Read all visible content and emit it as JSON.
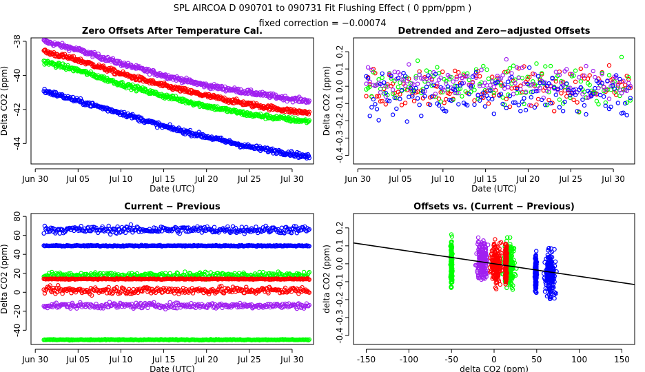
{
  "header": {
    "title": "SPL   AIRCOA D   090701 to 090731   Fit Flushing Effect ( 0 ppm/ppm )",
    "subtitle": "fixed correction = −0.00074"
  },
  "colors": {
    "blue": "#0000ff",
    "red": "#ff0000",
    "green": "#00ff00",
    "purple": "#a020f0",
    "line": "#000000"
  },
  "chart_data": [
    {
      "id": "zero-offsets",
      "type": "scatter",
      "title": "Zero Offsets After Temperature Cal.",
      "xlabel": "Date (UTC)",
      "ylabel": "Delta CO2 (ppm)",
      "xlim": [
        -0.5,
        32.5
      ],
      "ylim": [
        -45.2,
        -37.8
      ],
      "xticks": [
        {
          "v": 0,
          "label": "Jun 30"
        },
        {
          "v": 5,
          "label": "Jul 05"
        },
        {
          "v": 10,
          "label": "Jul 10"
        },
        {
          "v": 15,
          "label": "Jul 15"
        },
        {
          "v": 20,
          "label": "Jul 20"
        },
        {
          "v": 25,
          "label": "Jul 25"
        },
        {
          "v": 30,
          "label": "Jul 30"
        }
      ],
      "yticks": [
        {
          "v": -38,
          "label": "-38"
        },
        {
          "v": -40,
          "label": "-40"
        },
        {
          "v": -42,
          "label": "-42"
        },
        {
          "v": -44,
          "label": "-44"
        }
      ],
      "series": [
        {
          "name": "purple",
          "color": "purple",
          "x": [
            1,
            5,
            10,
            15,
            20,
            25,
            30,
            32
          ],
          "y": [
            -38,
            -38.5,
            -39.3,
            -40,
            -40.6,
            -41,
            -41.4,
            -41.5
          ]
        },
        {
          "name": "red",
          "color": "red",
          "x": [
            1,
            5,
            10,
            15,
            20,
            25,
            30,
            32
          ],
          "y": [
            -38.6,
            -39.1,
            -39.9,
            -40.6,
            -41.2,
            -41.7,
            -42.1,
            -42.2
          ]
        },
        {
          "name": "green",
          "color": "green",
          "x": [
            1,
            5,
            10,
            15,
            20,
            25,
            30,
            32
          ],
          "y": [
            -39.2,
            -39.7,
            -40.5,
            -41.2,
            -41.8,
            -42.3,
            -42.6,
            -42.7
          ]
        },
        {
          "name": "blue",
          "color": "blue",
          "x": [
            1,
            5,
            10,
            15,
            20,
            25,
            30,
            32
          ],
          "y": [
            -40.9,
            -41.5,
            -42.2,
            -43,
            -43.6,
            -44.2,
            -44.6,
            -44.8
          ]
        }
      ]
    },
    {
      "id": "detrended",
      "type": "scatter",
      "title": "Detrended and Zero−adjusted Offsets",
      "xlabel": "Date (UTC)",
      "ylabel": "Delta CO2 (ppm)",
      "xlim": [
        -0.5,
        32.5
      ],
      "ylim": [
        -0.45,
        0.28
      ],
      "xticks": [
        {
          "v": 0,
          "label": "Jun 30"
        },
        {
          "v": 5,
          "label": "Jul 05"
        },
        {
          "v": 10,
          "label": "Jul 10"
        },
        {
          "v": 15,
          "label": "Jul 15"
        },
        {
          "v": 20,
          "label": "Jul 20"
        },
        {
          "v": 25,
          "label": "Jul 25"
        },
        {
          "v": 30,
          "label": "Jul 30"
        }
      ],
      "yticks": [
        {
          "v": 0.2,
          "label": "0.2"
        },
        {
          "v": 0.1,
          "label": "0.1"
        },
        {
          "v": 0,
          "label": "0.0"
        },
        {
          "v": -0.1,
          "label": "-0.1"
        },
        {
          "v": -0.2,
          "label": "-0.2"
        },
        {
          "v": -0.3,
          "label": "-0.3"
        },
        {
          "v": -0.4,
          "label": "-0.4"
        }
      ],
      "series": [
        {
          "name": "red",
          "color": "red",
          "xrange": [
            1,
            32
          ],
          "center": 0.0,
          "spread": 0.1
        },
        {
          "name": "green",
          "color": "green",
          "xrange": [
            1,
            32
          ],
          "center": 0.0,
          "spread": 0.1
        },
        {
          "name": "purple",
          "color": "purple",
          "xrange": [
            1,
            32
          ],
          "center": 0.02,
          "spread": 0.08
        },
        {
          "name": "blue",
          "color": "blue",
          "xrange": [
            1,
            32
          ],
          "center": -0.05,
          "spread": 0.12
        }
      ]
    },
    {
      "id": "current-previous",
      "type": "scatter",
      "title": "Current − Previous",
      "xlabel": "Date (UTC)",
      "ylabel": "Delta CO2 (ppm)",
      "xlim": [
        -0.5,
        32.5
      ],
      "ylim": [
        -55,
        83
      ],
      "xticks": [
        {
          "v": 0,
          "label": "Jun 30"
        },
        {
          "v": 5,
          "label": "Jul 05"
        },
        {
          "v": 10,
          "label": "Jul 10"
        },
        {
          "v": 15,
          "label": "Jul 15"
        },
        {
          "v": 20,
          "label": "Jul 20"
        },
        {
          "v": 25,
          "label": "Jul 25"
        },
        {
          "v": 30,
          "label": "Jul 30"
        }
      ],
      "yticks": [
        {
          "v": 80,
          "label": "80"
        },
        {
          "v": 60,
          "label": "60"
        },
        {
          "v": 40,
          "label": "40"
        },
        {
          "v": 20,
          "label": "20"
        },
        {
          "v": 0,
          "label": "0"
        },
        {
          "v": -20,
          "label": "-20"
        },
        {
          "v": -40,
          "label": "-40"
        }
      ],
      "series": [
        {
          "name": "blue-high",
          "color": "blue",
          "xrange": [
            1,
            32
          ],
          "center": 66,
          "spread": 4
        },
        {
          "name": "blue-flat",
          "color": "blue",
          "xrange": [
            1,
            32
          ],
          "center": 49,
          "spread": 0.6
        },
        {
          "name": "green",
          "color": "green",
          "xrange": [
            1,
            32
          ],
          "center": 18,
          "spread": 3
        },
        {
          "name": "orange",
          "color": "red",
          "xrange": [
            1,
            32
          ],
          "center": 14,
          "spread": 0.5
        },
        {
          "name": "red",
          "color": "red",
          "xrange": [
            1,
            32
          ],
          "center": 2,
          "spread": 4
        },
        {
          "name": "purple",
          "color": "purple",
          "xrange": [
            1,
            32
          ],
          "center": -14,
          "spread": 3
        },
        {
          "name": "green-low",
          "color": "green",
          "xrange": [
            1,
            32
          ],
          "center": -50,
          "spread": 0.5
        }
      ]
    },
    {
      "id": "offsets-vs",
      "type": "scatter",
      "title": "Offsets vs. (Current − Previous)",
      "xlabel": "delta CO2 (ppm)",
      "ylabel": "delta CO2 (ppm)",
      "xlim": [
        -165,
        165
      ],
      "ylim": [
        -0.45,
        0.28
      ],
      "xticks": [
        {
          "v": -150,
          "label": "-150"
        },
        {
          "v": -100,
          "label": "-100"
        },
        {
          "v": -50,
          "label": "-50"
        },
        {
          "v": 0,
          "label": "0"
        },
        {
          "v": 50,
          "label": "50"
        },
        {
          "v": 100,
          "label": "100"
        },
        {
          "v": 150,
          "label": "150"
        }
      ],
      "yticks": [
        {
          "v": 0.2,
          "label": "0.2"
        },
        {
          "v": 0.1,
          "label": "0.1"
        },
        {
          "v": 0,
          "label": "0.0"
        },
        {
          "v": -0.1,
          "label": "-0.1"
        },
        {
          "v": -0.2,
          "label": "-0.2"
        },
        {
          "v": -0.3,
          "label": "-0.3"
        },
        {
          "v": -0.4,
          "label": "-0.4"
        }
      ],
      "fit_line": {
        "slope": -0.00074,
        "intercept": 0.0
      },
      "clusters": [
        {
          "color": "green",
          "x": -50,
          "xspread": 1,
          "center": 0.0,
          "spread": 0.1
        },
        {
          "color": "purple",
          "x": -14,
          "xspread": 6,
          "center": 0.02,
          "spread": 0.09
        },
        {
          "color": "green",
          "x": 18,
          "xspread": 6,
          "center": 0.0,
          "spread": 0.1
        },
        {
          "color": "red",
          "x": 2,
          "xspread": 6,
          "center": 0.0,
          "spread": 0.09
        },
        {
          "color": "red",
          "x": 14,
          "xspread": 1,
          "center": 0.0,
          "spread": 0.08
        },
        {
          "color": "blue",
          "x": 49,
          "xspread": 1,
          "center": -0.05,
          "spread": 0.08
        },
        {
          "color": "blue",
          "x": 66,
          "xspread": 6,
          "center": -0.05,
          "spread": 0.11
        }
      ]
    }
  ]
}
